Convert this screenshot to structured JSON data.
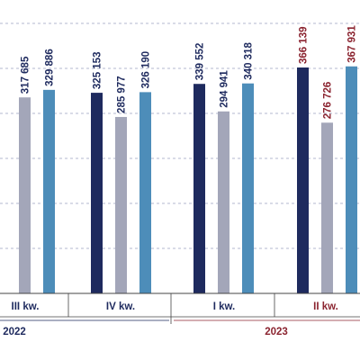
{
  "chart_data": {
    "type": "bar",
    "title": "",
    "xlabel": "",
    "ylabel": "",
    "ylim": [
      0,
      400000
    ],
    "grid": "horizontal",
    "legend": "none",
    "colors": {
      "series_dark": "#1e2a5e",
      "series_grey": "#a3a6b9",
      "series_blue": "#4d8db9",
      "label_default": "#1e2a5e",
      "label_highlight": "#8b2430",
      "grid": "#9aa0c0",
      "axis": "#444444"
    },
    "categories": [
      "III kw.",
      "IV kw.",
      "I kw.",
      "II kw."
    ],
    "category_label_colors": [
      "#1e2a5e",
      "#1e2a5e",
      "#1e2a5e",
      "#8b2430"
    ],
    "years": [
      {
        "label": "2022",
        "color": "#1e2a5e"
      },
      {
        "label": "2023",
        "color": "#8b2430"
      }
    ],
    "series": [
      {
        "values": [
          null,
          325153,
          339552,
          366139
        ],
        "labels": [
          "",
          "325 153",
          "339 552",
          "366 139"
        ]
      },
      {
        "values": [
          317685,
          285977,
          294941,
          276726
        ],
        "labels": [
          "317 685",
          "285 977",
          "294 941",
          "276 726"
        ]
      },
      {
        "values": [
          329886,
          326190,
          340318,
          367931
        ],
        "labels": [
          "329 886",
          "326 190",
          "340 318",
          "367 931"
        ]
      }
    ]
  }
}
